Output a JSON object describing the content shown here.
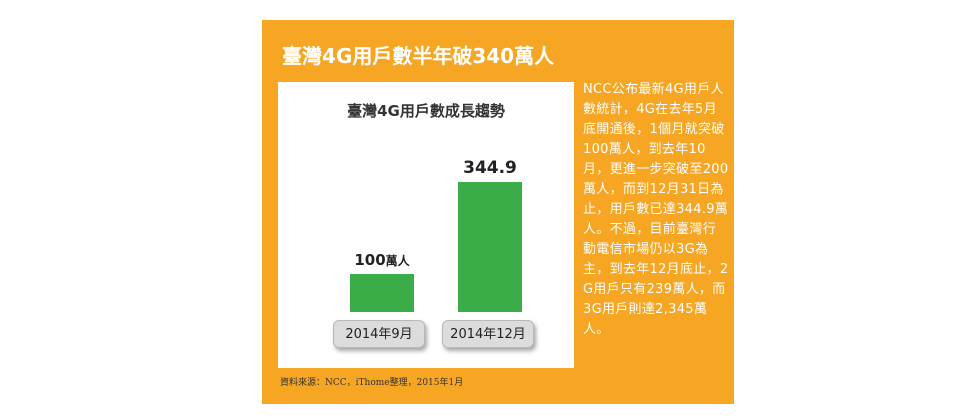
{
  "headline": "臺灣4G用戶數半年破340萬人",
  "chart_data": {
    "type": "bar",
    "title": "臺灣4G用戶數成長趨勢",
    "categories": [
      "2014年9月",
      "2014年12月"
    ],
    "values": [
      100,
      344.9
    ],
    "value_labels": [
      "100",
      "344.9"
    ],
    "unit": "萬人",
    "ylim": [
      0,
      344.9
    ],
    "bar_color": "#3aad49"
  },
  "article": "NCC公布最新4G用戶人數統計，4G在去年5月底開通後，1個月就突破100萬人，到去年10月，更進一步突破至200萬人，而到12月31日為止，用戶數已達344.9萬人。不過，目前臺灣行動電信市場仍以3G為主，到去年12月底止，2G用戶只有239萬人，而3G用戶則達2,345萬人。",
  "source": "資料來源：NCC，iThome整理，2015年1月",
  "colors": {
    "background": "#f6a623",
    "panel": "#ffffff",
    "text": "#ffffff"
  }
}
